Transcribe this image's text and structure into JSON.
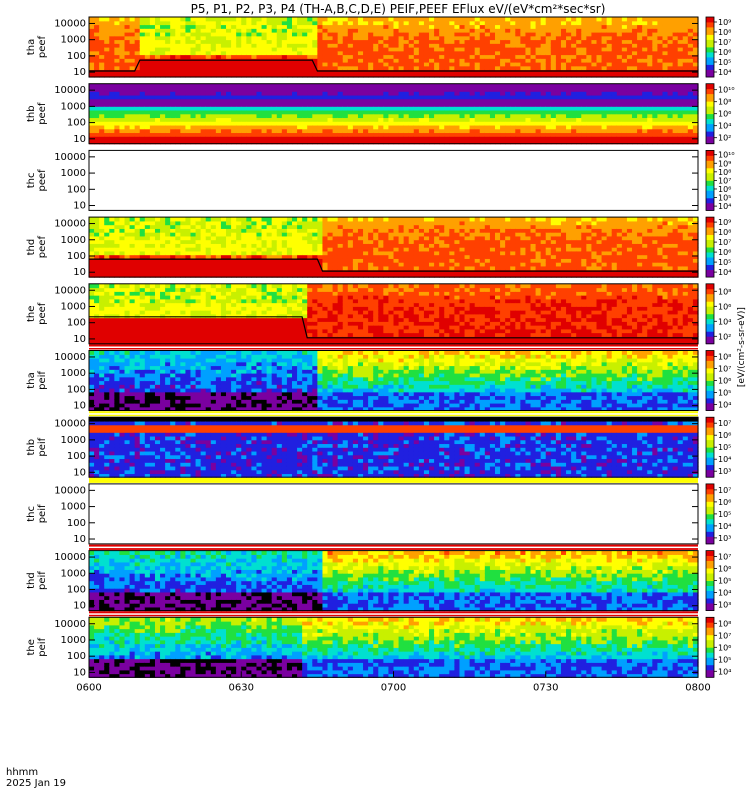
{
  "chart_data": {
    "type": "heatmap",
    "title": "P5, P1, P2, P3, P4 (TH-A,B,C,D,E) PEIF,PEEF EFlux eV/(eV*cm²*sec*sr)",
    "colorbar_label": "[eV/(cm²-s-sr-eV)]",
    "x_ticks": [
      "0600",
      "0630",
      "0700",
      "0730",
      "0800"
    ],
    "x_range": [
      "0600",
      "0800"
    ],
    "x_footer": [
      "hhmm",
      "2025 Jan 19"
    ],
    "y_scale": "log",
    "y_range": [
      5,
      25000
    ],
    "y_ticks": [
      "10",
      "100",
      "1000",
      "10000"
    ],
    "colormap": [
      "#7a00a0",
      "#2020e0",
      "#00a0ff",
      "#00e0d0",
      "#20e040",
      "#c8f000",
      "#ffff00",
      "#ffa000",
      "#ff4000",
      "#e00000"
    ],
    "panels": [
      {
        "probe": "tha",
        "species": "peef",
        "label": "tha\npeef",
        "status": "data",
        "base": 0.82,
        "cold_start": 0.08,
        "cold_end": 0.37,
        "cold_floor": 0.28,
        "cbar_ticks": [
          "10⁴",
          "10⁵",
          "10⁶",
          "10⁷",
          "10⁸",
          "10⁹"
        ]
      },
      {
        "probe": "thb",
        "species": "peef",
        "label": "thb\npeef",
        "status": "banded",
        "cbar_ticks": [
          "10²",
          "10⁴",
          "10⁶",
          "10⁸",
          "10¹⁰"
        ]
      },
      {
        "probe": "thc",
        "species": "peef",
        "label": "thc\npeef",
        "status": "empty",
        "cbar_ticks": [
          "10⁴",
          "10⁵",
          "10⁶",
          "10⁷",
          "10⁸",
          "10⁹",
          "10¹⁰"
        ]
      },
      {
        "probe": "thd",
        "species": "peef",
        "label": "thd\npeef",
        "status": "data",
        "base": 0.83,
        "cold_start": 0.0,
        "cold_end": 0.38,
        "cold_floor": 0.3,
        "cbar_ticks": [
          "10⁴",
          "10⁵",
          "10⁶",
          "10⁷",
          "10⁸",
          "10⁹"
        ]
      },
      {
        "probe": "the",
        "species": "peef",
        "label": "the\npeef",
        "status": "data",
        "base": 0.9,
        "cold_start": 0.0,
        "cold_end": 0.35,
        "cold_floor": 0.45,
        "cbar_ticks": [
          "10²",
          "10⁴",
          "10⁶",
          "10⁸"
        ]
      },
      {
        "probe": "tha",
        "species": "peif",
        "label": "tha\npeif",
        "status": "ion",
        "base": 0.26,
        "split": 0.37,
        "late": 0.55,
        "cbar_ticks": [
          "10⁴",
          "10⁵",
          "10⁶",
          "10⁷",
          "10⁸"
        ]
      },
      {
        "probe": "thb",
        "species": "peif",
        "label": "thb\npeif",
        "status": "ionband",
        "cbar_ticks": [
          "10³",
          "10⁴",
          "10⁵",
          "10⁶",
          "10⁷"
        ]
      },
      {
        "probe": "thc",
        "species": "peif",
        "label": "thc\npeif",
        "status": "empty",
        "cbar_ticks": [
          "10³",
          "10⁴",
          "10⁵",
          "10⁶",
          "10⁷"
        ]
      },
      {
        "probe": "thd",
        "species": "peif",
        "label": "thd\npeif",
        "status": "ion",
        "base": 0.3,
        "split": 0.38,
        "late": 0.58,
        "cbar_ticks": [
          "10³",
          "10⁴",
          "10⁵",
          "10⁶",
          "10⁷"
        ]
      },
      {
        "probe": "the",
        "species": "peif",
        "label": "the\npeif",
        "status": "ion",
        "base": 0.42,
        "split": 0.35,
        "late": 0.55,
        "cbar_ticks": [
          "10⁴",
          "10⁵",
          "10⁶",
          "10⁷",
          "10⁸"
        ]
      }
    ],
    "colorbar_side_text": [
      "eV/(cm²-s-sr-eV)",
      "(eV/(cm²-s-sr-eV))",
      "[eV/(cm²-s-sr-eV)]"
    ]
  }
}
